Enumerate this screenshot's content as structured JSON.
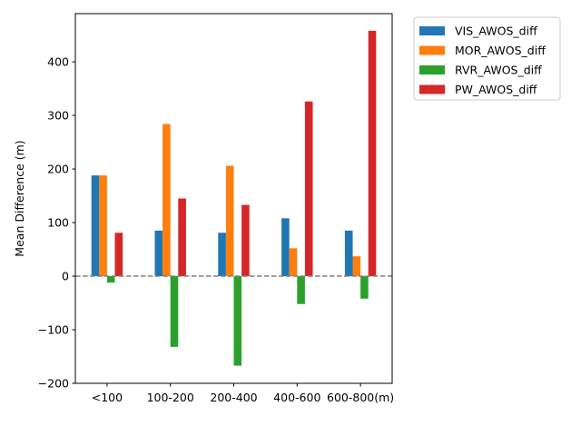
{
  "chart_data": {
    "type": "bar",
    "title": "",
    "xlabel": "",
    "ylabel": "Mean Difference (m)",
    "categories": [
      "<100",
      "100-200",
      "200-400",
      "400-600",
      "600-800(m)"
    ],
    "ylim": [
      -200,
      490
    ],
    "yticks": [
      -200,
      -100,
      0,
      100,
      200,
      300,
      400
    ],
    "ytick_labels": [
      "−200",
      "−100",
      "0",
      "100",
      "200",
      "300",
      "400"
    ],
    "reference_line": {
      "y": 0,
      "style": "dashed",
      "color": "#808080"
    },
    "grid": false,
    "legend_position": "outside-top-right",
    "series": [
      {
        "name": "VIS_AWOS_diff",
        "color": "#1f77b4",
        "values": [
          188,
          85,
          81,
          108,
          85
        ]
      },
      {
        "name": "MOR_AWOS_diff",
        "color": "#ff7f0e",
        "values": [
          188,
          284,
          206,
          52,
          37
        ]
      },
      {
        "name": "RVR_AWOS_diff",
        "color": "#2ca02c",
        "values": [
          -12,
          -132,
          -167,
          -52,
          -42
        ]
      },
      {
        "name": "PW_AWOS_diff",
        "color": "#d62728",
        "values": [
          81,
          145,
          133,
          326,
          458
        ]
      }
    ]
  }
}
